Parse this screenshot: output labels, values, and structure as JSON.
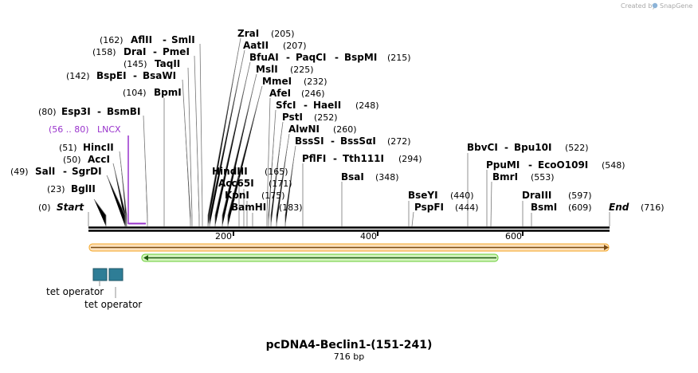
{
  "credit": {
    "prefix": "Created by",
    "brand": "SnapGene"
  },
  "map": {
    "title": "pcDNA4-Beclin1-(151-241)",
    "length_label": "716 bp",
    "total_bp": 716,
    "start_label": "Start",
    "start_pos": "(0)",
    "end_label": "End",
    "end_pos": "(716)",
    "ticks": [
      "200",
      "400",
      "600"
    ]
  },
  "sites": [
    {
      "pos": "(162)",
      "names": [
        "AflII",
        "SmlI"
      ],
      "bp": 162
    },
    {
      "pos": "(158)",
      "names": [
        "DraI",
        "PmeI"
      ],
      "bp": 158
    },
    {
      "pos": "(145)",
      "names": [
        "TaqII"
      ],
      "bp": 145
    },
    {
      "pos": "(142)",
      "names": [
        "BspEI",
        "BsaWI"
      ],
      "bp": 142
    },
    {
      "pos": "(104)",
      "names": [
        "BpmI"
      ],
      "bp": 104
    },
    {
      "pos": "(80)",
      "names": [
        "Esp3I",
        "BsmBI"
      ],
      "bp": 80
    },
    {
      "pos": "(51)",
      "names": [
        "HincII"
      ],
      "bp": 51
    },
    {
      "pos": "(50)",
      "names": [
        "AccI"
      ],
      "bp": 50
    },
    {
      "pos": "(49)",
      "names": [
        "SalI",
        "SgrDI"
      ],
      "bp": 49
    },
    {
      "pos": "(23)",
      "names": [
        "BglII"
      ],
      "bp": 23
    },
    {
      "pos": "(205)",
      "names": [
        "ZraI"
      ],
      "bp": 205
    },
    {
      "pos": "(207)",
      "names": [
        "AatII"
      ],
      "bp": 207
    },
    {
      "pos": "(215)",
      "names": [
        "BfuAI",
        "PaqCI",
        "BspMI"
      ],
      "bp": 215
    },
    {
      "pos": "(225)",
      "names": [
        "MslI"
      ],
      "bp": 225
    },
    {
      "pos": "(232)",
      "names": [
        "MmeI"
      ],
      "bp": 232
    },
    {
      "pos": "(246)",
      "names": [
        "AfeI"
      ],
      "bp": 246
    },
    {
      "pos": "(248)",
      "names": [
        "SfcI",
        "HaeII"
      ],
      "bp": 248
    },
    {
      "pos": "(252)",
      "names": [
        "PstI"
      ],
      "bp": 252
    },
    {
      "pos": "(260)",
      "names": [
        "AlwNI"
      ],
      "bp": 260
    },
    {
      "pos": "(272)",
      "names": [
        "BssSI",
        "BssSαI"
      ],
      "bp": 272
    },
    {
      "pos": "(294)",
      "names": [
        "PflFI",
        "Tth111I"
      ],
      "bp": 294
    },
    {
      "pos": "(348)",
      "names": [
        "BsaI"
      ],
      "bp": 348
    },
    {
      "pos": "(165)",
      "names": [
        "HindIII"
      ],
      "bp": 165
    },
    {
      "pos": "(171)",
      "names": [
        "Acc65I"
      ],
      "bp": 171
    },
    {
      "pos": "(175)",
      "names": [
        "KpnI"
      ],
      "bp": 175
    },
    {
      "pos": "(183)",
      "names": [
        "BamHI"
      ],
      "bp": 183
    },
    {
      "pos": "(440)",
      "names": [
        "BseYI"
      ],
      "bp": 440
    },
    {
      "pos": "(444)",
      "names": [
        "PspFI"
      ],
      "bp": 444
    },
    {
      "pos": "(522)",
      "names": [
        "BbvCI",
        "Bpu10I"
      ],
      "bp": 522
    },
    {
      "pos": "(548)",
      "names": [
        "PpuMI",
        "EcoO109I"
      ],
      "bp": 548
    },
    {
      "pos": "(553)",
      "names": [
        "BmrI"
      ],
      "bp": 553
    },
    {
      "pos": "(597)",
      "names": [
        "DraIII"
      ],
      "bp": 597
    },
    {
      "pos": "(609)",
      "names": [
        "BsmI"
      ],
      "bp": 609
    }
  ],
  "features": {
    "lncx": {
      "range": "(56 .. 80)",
      "name": "LNCX",
      "color": "#9933cc"
    },
    "tet_operator_1": {
      "name": "tet operator"
    },
    "tet_operator_2": {
      "name": "tet operator"
    },
    "orange_arrow": {
      "color": "#f5a623"
    },
    "green_arrow": {
      "color": "#66cc33"
    },
    "tet_box_color": "#2e7d96"
  }
}
